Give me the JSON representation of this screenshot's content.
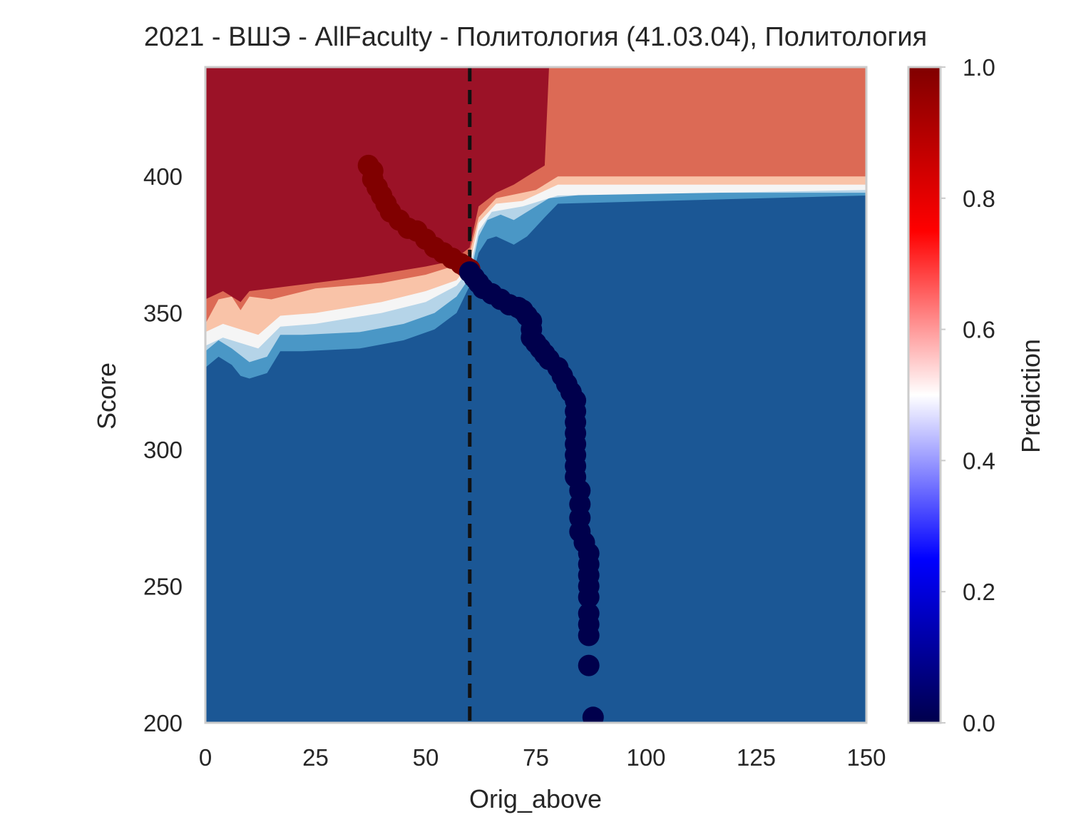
{
  "chart_data": {
    "type": "contour",
    "title": "2021 - ВШЭ - AllFaculty - Политология (41.03.04), Политология",
    "xlabel": "Orig_above",
    "ylabel": "Score",
    "xlim": [
      0,
      150
    ],
    "ylim": [
      200,
      440
    ],
    "xticks": [
      "0",
      "25",
      "50",
      "75",
      "100",
      "125",
      "150"
    ],
    "yticks": [
      "200",
      "250",
      "300",
      "350",
      "400"
    ],
    "grid": false,
    "threshold_line": {
      "x": 60,
      "style": "dashed",
      "color": "#111111"
    },
    "colorbar": {
      "label": "Prediction",
      "cmap": "seismic",
      "range": [
        0,
        1
      ],
      "ticks": [
        "0.0",
        "0.2",
        "0.4",
        "0.6",
        "0.8",
        "1.0"
      ],
      "stops": [
        "#00004c",
        "#0000ff",
        "#ffffff",
        "#ff0000",
        "#800000"
      ]
    },
    "contour_levels": [
      {
        "level": "0.0-0.2",
        "color": "#1b5795"
      },
      {
        "level": "0.2-0.3",
        "color": "#4a97c6"
      },
      {
        "level": "0.3-0.4",
        "color": "#b5d4e8"
      },
      {
        "level": "0.5-0.6",
        "color": "#f5f5f5"
      },
      {
        "level": "0.6-0.7",
        "color": "#f9c3a8"
      },
      {
        "level": "0.7-0.8",
        "color": "#dc6a55"
      },
      {
        "level": "0.9-1.0",
        "color": "#9b1227"
      }
    ],
    "series": [
      {
        "values": [
          [
            37,
            404
          ],
          [
            38,
            402
          ],
          [
            38,
            399
          ],
          [
            39,
            396
          ],
          [
            40,
            393
          ],
          [
            41,
            390
          ],
          [
            42,
            387
          ],
          [
            44,
            384
          ],
          [
            46,
            381
          ],
          [
            48,
            380
          ],
          [
            50,
            377
          ],
          [
            52,
            374
          ],
          [
            54,
            372
          ],
          [
            56,
            370
          ],
          [
            58,
            368
          ],
          [
            59,
            367
          ],
          [
            60,
            366
          ]
        ],
        "color": "#800000"
      },
      {
        "values": [
          [
            60,
            365
          ],
          [
            61,
            363
          ],
          [
            62,
            361
          ],
          [
            63,
            359
          ],
          [
            65,
            357
          ],
          [
            67,
            355
          ],
          [
            69,
            353
          ],
          [
            71,
            352
          ],
          [
            72,
            351
          ],
          [
            73,
            349
          ],
          [
            74,
            347
          ],
          [
            74,
            344
          ],
          [
            74,
            341
          ],
          [
            75,
            339
          ],
          [
            76,
            337
          ],
          [
            77,
            335
          ],
          [
            78,
            333
          ],
          [
            80,
            330
          ],
          [
            81,
            327
          ],
          [
            82,
            324
          ],
          [
            83,
            321
          ],
          [
            84,
            318
          ],
          [
            84,
            314
          ],
          [
            84,
            310
          ],
          [
            84,
            306
          ],
          [
            84,
            302
          ],
          [
            84,
            298
          ],
          [
            84,
            294
          ],
          [
            84,
            290
          ],
          [
            85,
            285
          ],
          [
            85,
            280
          ],
          [
            85,
            275
          ],
          [
            85,
            270
          ],
          [
            86,
            266
          ],
          [
            87,
            262
          ],
          [
            87,
            258
          ],
          [
            87,
            254
          ],
          [
            87,
            250
          ],
          [
            87,
            246
          ],
          [
            87,
            240
          ],
          [
            87,
            236
          ],
          [
            87,
            232
          ],
          [
            87,
            221
          ],
          [
            88,
            202
          ]
        ],
        "color": "#00004c"
      }
    ]
  }
}
